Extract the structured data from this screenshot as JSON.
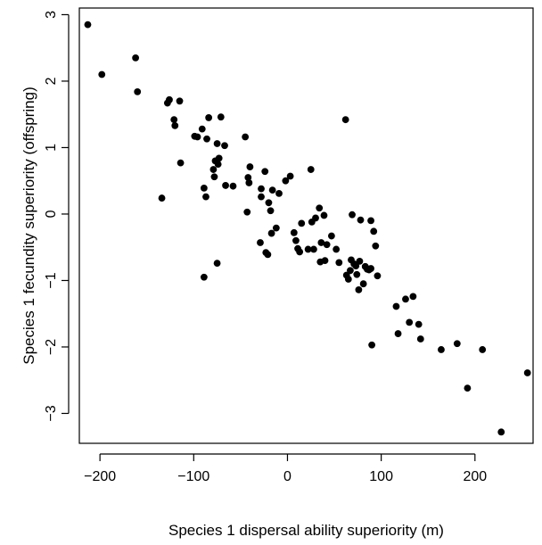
{
  "chart_data": {
    "type": "scatter",
    "title": "",
    "xlabel": "Species 1 dispersal ability superiority (m)",
    "ylabel": "Species 1 fecundity superiority (offspring)",
    "xlim": [
      -222,
      262
    ],
    "ylim": [
      -3.45,
      3.1
    ],
    "xticks": [
      -200,
      -100,
      0,
      100,
      200
    ],
    "xtick_labels": [
      "−200",
      "−100",
      "0",
      "100",
      "200"
    ],
    "yticks": [
      -3,
      -2,
      -1,
      0,
      1,
      2,
      3
    ],
    "ytick_labels": [
      "−3",
      "−2",
      "−1",
      "0",
      "1",
      "2",
      "3"
    ],
    "grid": false,
    "legend": "none",
    "point_color": "#000000",
    "points": [
      [
        -213,
        2.85
      ],
      [
        -198,
        2.1
      ],
      [
        -162,
        2.35
      ],
      [
        -160,
        1.84
      ],
      [
        -128,
        1.67
      ],
      [
        -126,
        1.72
      ],
      [
        -121,
        1.42
      ],
      [
        -120,
        1.33
      ],
      [
        -115,
        1.7
      ],
      [
        -114,
        0.77
      ],
      [
        -134,
        0.24
      ],
      [
        -99,
        1.17
      ],
      [
        -96,
        1.16
      ],
      [
        -91,
        1.28
      ],
      [
        -89,
        0.39
      ],
      [
        -87,
        0.26
      ],
      [
        -86,
        1.13
      ],
      [
        -84,
        1.45
      ],
      [
        -79,
        0.67
      ],
      [
        -78,
        0.56
      ],
      [
        -77,
        0.8
      ],
      [
        -75,
        1.06
      ],
      [
        -73,
        0.84
      ],
      [
        -74,
        0.75
      ],
      [
        -71,
        1.46
      ],
      [
        -67,
        1.03
      ],
      [
        -66,
        0.43
      ],
      [
        -58,
        0.42
      ],
      [
        -75,
        -0.74
      ],
      [
        -89,
        -0.95
      ],
      [
        -45,
        1.16
      ],
      [
        -42,
        0.55
      ],
      [
        -41,
        0.47
      ],
      [
        -40,
        0.71
      ],
      [
        -43,
        0.03
      ],
      [
        -29,
        -0.43
      ],
      [
        -28,
        0.38
      ],
      [
        -28,
        0.26
      ],
      [
        -24,
        0.64
      ],
      [
        -23,
        -0.58
      ],
      [
        -21,
        -0.61
      ],
      [
        -20,
        0.17
      ],
      [
        -18,
        0.05
      ],
      [
        -17,
        -0.29
      ],
      [
        -16,
        0.36
      ],
      [
        -12,
        -0.21
      ],
      [
        -9,
        0.31
      ],
      [
        -2,
        0.5
      ],
      [
        3,
        0.57
      ],
      [
        7,
        -0.28
      ],
      [
        9,
        -0.4
      ],
      [
        11,
        -0.52
      ],
      [
        13,
        -0.57
      ],
      [
        15,
        -0.14
      ],
      [
        22,
        -0.53
      ],
      [
        25,
        0.67
      ],
      [
        26,
        -0.12
      ],
      [
        28,
        -0.53
      ],
      [
        30,
        -0.06
      ],
      [
        34,
        0.09
      ],
      [
        35,
        -0.72
      ],
      [
        36,
        -0.43
      ],
      [
        39,
        -0.02
      ],
      [
        40,
        -0.7
      ],
      [
        42,
        -0.46
      ],
      [
        47,
        -0.33
      ],
      [
        52,
        -0.53
      ],
      [
        55,
        -0.73
      ],
      [
        62,
        1.42
      ],
      [
        63,
        -0.92
      ],
      [
        65,
        -0.98
      ],
      [
        67,
        -0.85
      ],
      [
        68,
        -0.69
      ],
      [
        69,
        -0.01
      ],
      [
        71,
        -0.75
      ],
      [
        73,
        -0.78
      ],
      [
        74,
        -0.91
      ],
      [
        76,
        -1.14
      ],
      [
        77,
        -0.71
      ],
      [
        78,
        -0.09
      ],
      [
        81,
        -1.05
      ],
      [
        83,
        -0.79
      ],
      [
        85,
        -0.83
      ],
      [
        87,
        -0.84
      ],
      [
        89,
        -0.1
      ],
      [
        89,
        -0.82
      ],
      [
        90,
        -1.97
      ],
      [
        92,
        -0.26
      ],
      [
        94,
        -0.48
      ],
      [
        96,
        -0.93
      ],
      [
        116,
        -1.39
      ],
      [
        118,
        -1.8
      ],
      [
        126,
        -1.28
      ],
      [
        130,
        -1.63
      ],
      [
        134,
        -1.24
      ],
      [
        140,
        -1.66
      ],
      [
        142,
        -1.88
      ],
      [
        164,
        -2.04
      ],
      [
        181,
        -1.95
      ],
      [
        192,
        -2.62
      ],
      [
        208,
        -2.04
      ],
      [
        228,
        -3.28
      ],
      [
        256,
        -2.39
      ]
    ]
  }
}
